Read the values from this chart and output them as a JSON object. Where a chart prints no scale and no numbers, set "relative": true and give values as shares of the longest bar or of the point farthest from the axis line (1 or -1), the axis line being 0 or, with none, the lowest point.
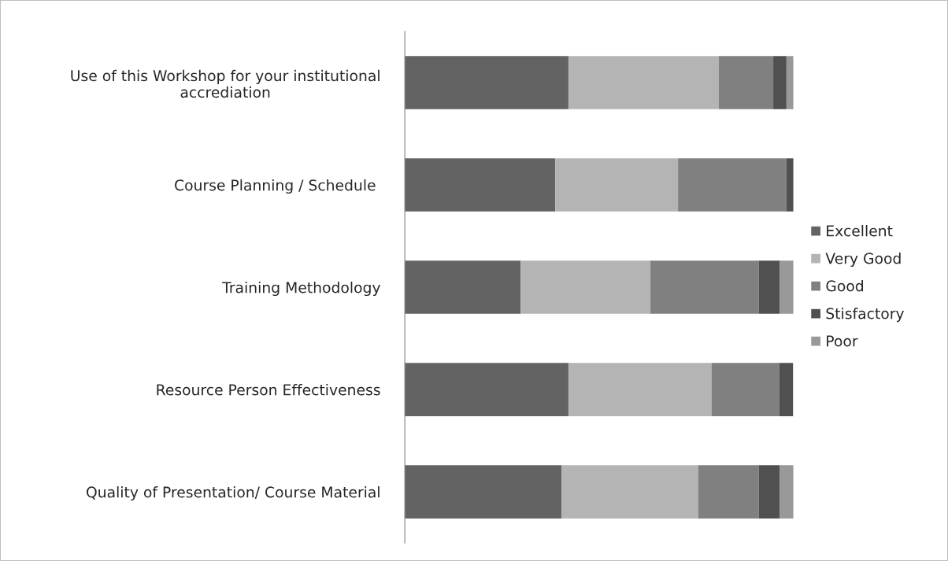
{
  "chart_data": {
    "type": "bar",
    "orientation": "horizontal",
    "stacked": true,
    "relative": true,
    "legend": "right",
    "categories": [
      "Use of this Workshop for your institutional\naccrediation",
      "Course Planning / Schedule ",
      "Training Methodology",
      "Resource Person Effectiveness",
      "Quality of Presentation/ Course Material"
    ],
    "series": [
      {
        "name": "Excellent",
        "color": "#636363",
        "values": [
          0.421,
          0.387,
          0.298,
          0.421,
          0.403
        ]
      },
      {
        "name": "Very Good",
        "color": "#b4b4b4",
        "values": [
          0.387,
          0.316,
          0.334,
          0.368,
          0.352
        ]
      },
      {
        "name": "Good",
        "color": "#808080",
        "values": [
          0.14,
          0.279,
          0.279,
          0.174,
          0.156
        ]
      },
      {
        "name": "Stisfactory",
        "color": "#505050",
        "values": [
          0.034,
          0.018,
          0.053,
          0.036,
          0.053
        ]
      },
      {
        "name": "Poor",
        "color": "#999999",
        "values": [
          0.018,
          0,
          0.036,
          0,
          0.036
        ]
      }
    ]
  }
}
